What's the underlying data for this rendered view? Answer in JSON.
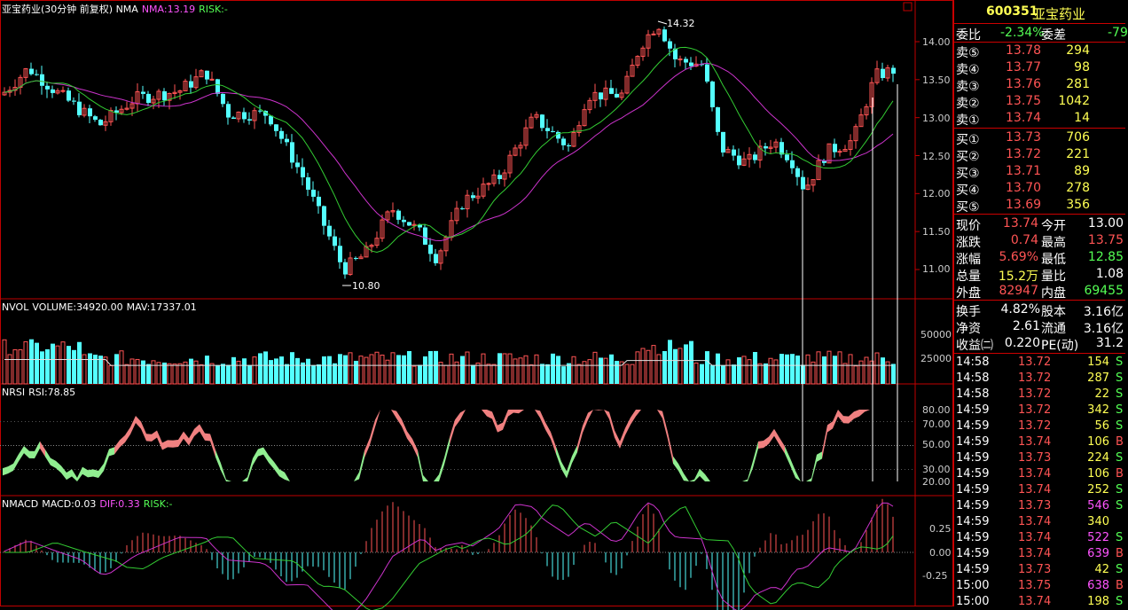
{
  "colors": {
    "up": "#ff5454",
    "down": "#54ffff",
    "nma": "#cc33cc",
    "ma": "#33cc33",
    "rsi_up": "#f08080",
    "rsi_down": "#90ee90",
    "grid": "#c00000"
  },
  "main_header": {
    "title": "亚宝药业(30分钟 前复权) NMA",
    "nma": "NMA:13.19",
    "risk": "RISK:-"
  },
  "price_axis": [
    "14.00",
    "13.50",
    "13.00",
    "12.50",
    "12.00",
    "11.50",
    "11.00"
  ],
  "annotations": {
    "high": "14.32",
    "low": "10.80"
  },
  "vol_header": {
    "title": "NVOL",
    "volume": "VOLUME:34920.00",
    "mav": "MAV:17337.01"
  },
  "vol_axis": [
    "50000",
    "25000"
  ],
  "rsi_header": {
    "title": "NRSI",
    "rsi": "RSI:78.85"
  },
  "rsi_axis": [
    "80.00",
    "70.00",
    "50.00",
    "30.00",
    "20.00"
  ],
  "macd_header": {
    "title": "NMACD",
    "macd": "MACD:0.03",
    "dif": "DIF:0.33",
    "risk": "RISK:-"
  },
  "macd_axis": [
    "0.25",
    "0.00",
    "-0.25"
  ],
  "quote": {
    "code": "600351",
    "name": "亚宝药业",
    "wb_label": "委比",
    "wb_value": "-2.34%",
    "wc_label": "委差",
    "wc_value": "-79",
    "asks": [
      {
        "label": "卖⑤",
        "price": "13.78",
        "vol": "294"
      },
      {
        "label": "卖④",
        "price": "13.77",
        "vol": "98"
      },
      {
        "label": "卖③",
        "price": "13.76",
        "vol": "281"
      },
      {
        "label": "卖②",
        "price": "13.75",
        "vol": "1042"
      },
      {
        "label": "卖①",
        "price": "13.74",
        "vol": "14"
      }
    ],
    "bids": [
      {
        "label": "买①",
        "price": "13.73",
        "vol": "706"
      },
      {
        "label": "买②",
        "price": "13.72",
        "vol": "221"
      },
      {
        "label": "买③",
        "price": "13.71",
        "vol": "89"
      },
      {
        "label": "买④",
        "price": "13.70",
        "vol": "278"
      },
      {
        "label": "买⑤",
        "price": "13.69",
        "vol": "356"
      }
    ],
    "stats": [
      {
        "l1": "现价",
        "v1": "13.74",
        "c1": "red",
        "l2": "今开",
        "v2": "13.00",
        "c2": "white"
      },
      {
        "l1": "涨跌",
        "v1": "0.74",
        "c1": "red",
        "l2": "最高",
        "v2": "13.75",
        "c2": "red"
      },
      {
        "l1": "涨幅",
        "v1": "5.69%",
        "c1": "red",
        "l2": "最低",
        "v2": "12.85",
        "c2": "green"
      },
      {
        "l1": "总量",
        "v1": "15.2万",
        "c1": "yellow",
        "l2": "量比",
        "v2": "1.08",
        "c2": "white"
      },
      {
        "l1": "外盘",
        "v1": "82947",
        "c1": "red",
        "l2": "内盘",
        "v2": "69455",
        "c2": "green"
      }
    ],
    "stats2": [
      {
        "l1": "换手",
        "v1": "4.82%",
        "l2": "股本",
        "v2": "3.16亿"
      },
      {
        "l1": "净资",
        "v1": "2.61",
        "l2": "流通",
        "v2": "3.16亿"
      },
      {
        "l1": "收益㈡",
        "v1": "0.220",
        "l2": "PE(动)",
        "v2": "31.2"
      }
    ],
    "ticks": [
      {
        "t": "14:58",
        "p": "13.72",
        "v": "154",
        "s": "S",
        "vc": "yellow"
      },
      {
        "t": "14:58",
        "p": "13.72",
        "v": "287",
        "s": "S",
        "vc": "yellow"
      },
      {
        "t": "14:58",
        "p": "13.72",
        "v": "22",
        "s": "S",
        "vc": "yellow"
      },
      {
        "t": "14:59",
        "p": "13.72",
        "v": "342",
        "s": "S",
        "vc": "yellow"
      },
      {
        "t": "14:59",
        "p": "13.72",
        "v": "56",
        "s": "S",
        "vc": "yellow"
      },
      {
        "t": "14:59",
        "p": "13.74",
        "v": "106",
        "s": "B",
        "vc": "yellow"
      },
      {
        "t": "14:59",
        "p": "13.73",
        "v": "224",
        "s": "S",
        "vc": "yellow"
      },
      {
        "t": "14:59",
        "p": "13.74",
        "v": "106",
        "s": "B",
        "vc": "yellow"
      },
      {
        "t": "14:59",
        "p": "13.74",
        "v": "252",
        "s": "S",
        "vc": "yellow"
      },
      {
        "t": "14:59",
        "p": "13.73",
        "v": "546",
        "s": "S",
        "vc": "magenta"
      },
      {
        "t": "14:59",
        "p": "13.74",
        "v": "340",
        "s": "",
        "vc": "yellow"
      },
      {
        "t": "14:59",
        "p": "13.74",
        "v": "522",
        "s": "S",
        "vc": "magenta"
      },
      {
        "t": "14:59",
        "p": "13.74",
        "v": "639",
        "s": "B",
        "vc": "magenta"
      },
      {
        "t": "14:59",
        "p": "13.73",
        "v": "42",
        "s": "S",
        "vc": "yellow"
      },
      {
        "t": "15:00",
        "p": "13.75",
        "v": "638",
        "s": "B",
        "vc": "magenta"
      },
      {
        "t": "15:00",
        "p": "13.74",
        "v": "198",
        "s": "S",
        "vc": "yellow"
      }
    ]
  }
}
